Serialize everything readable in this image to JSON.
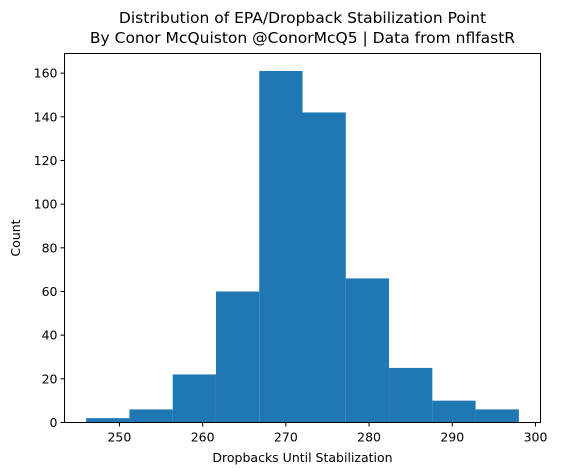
{
  "chart_data": {
    "type": "bar",
    "title_line1": "Distribution of EPA/Dropback Stabilization Point",
    "title_line2": "By Conor McQuiston @ConorMcQ5 | Data from nflfastR",
    "xlabel": "Dropbacks Until Stabilization",
    "ylabel": "Count",
    "bar_color": "#1f77b4",
    "bin_edges": [
      246,
      251.2,
      256.4,
      261.6,
      266.8,
      272,
      277.2,
      282.4,
      287.6,
      292.8,
      298
    ],
    "counts": [
      2,
      6,
      22,
      60,
      161,
      142,
      66,
      25,
      10,
      6
    ],
    "xlim": [
      243.4,
      300.6
    ],
    "ylim": [
      0,
      169
    ],
    "xticks": [
      250,
      260,
      270,
      280,
      290,
      300
    ],
    "yticks": [
      0,
      20,
      40,
      60,
      80,
      100,
      120,
      140,
      160
    ],
    "grid": false,
    "legend": "none"
  }
}
